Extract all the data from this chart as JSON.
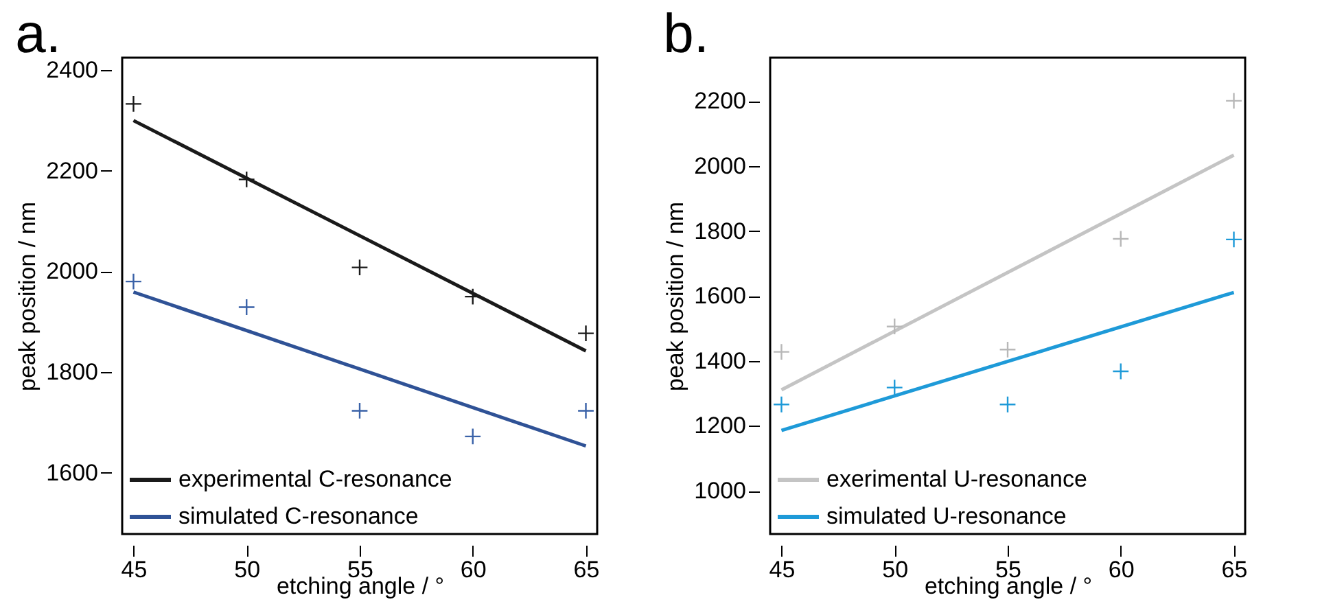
{
  "chart_data": [
    {
      "type": "line",
      "title": "a.",
      "xlabel": "etching angle / °",
      "ylabel": "peak position / nm",
      "xlim": [
        44.5,
        65.5
      ],
      "ylim": [
        1478,
        2425
      ],
      "xticks": [
        45,
        50,
        55,
        60,
        65
      ],
      "yticks": [
        1600,
        1800,
        2000,
        2200,
        2400
      ],
      "grid": false,
      "legend": "bottom left",
      "series": [
        {
          "name": "experimental C-resonance",
          "color": "#1a1a1a",
          "x": [
            45,
            65
          ],
          "values": [
            2300,
            1842
          ]
        },
        {
          "name": "simulated C-resonance",
          "color": "#2f5296",
          "x": [
            45,
            65
          ],
          "values": [
            1959,
            1653
          ]
        },
        {
          "color": "#1a1a1a",
          "type": "scatter",
          "marker": "cross",
          "x": [
            45,
            50,
            55,
            60,
            65
          ],
          "values": [
            2333,
            2183,
            2008,
            1950,
            1877
          ]
        },
        {
          "color": "#3a62a8",
          "type": "scatter",
          "marker": "cross",
          "x": [
            45,
            50,
            55,
            60,
            65
          ],
          "values": [
            1980,
            1929,
            1723,
            1672,
            1723
          ]
        }
      ]
    },
    {
      "type": "line",
      "title": "b.",
      "xlabel": "etching angle / °",
      "ylabel": "peak position / nm",
      "xlim": [
        44.5,
        65.5
      ],
      "ylim": [
        867,
        2334
      ],
      "xticks": [
        45,
        50,
        55,
        60,
        65
      ],
      "yticks": [
        1000,
        1200,
        1400,
        1600,
        1800,
        2000,
        2200
      ],
      "grid": false,
      "legend": "bottom left",
      "series": [
        {
          "name": "exerimental U-resonance",
          "color": "#c4c4c4",
          "x": [
            45,
            65
          ],
          "values": [
            1311,
            2034
          ]
        },
        {
          "name": "simulated U-resonance",
          "color": "#1e9ad8",
          "x": [
            45,
            65
          ],
          "values": [
            1186,
            1611
          ]
        },
        {
          "color": "#b8b8b8",
          "type": "scatter",
          "marker": "cross",
          "x": [
            45,
            50,
            55,
            60,
            65
          ],
          "values": [
            1428,
            1506,
            1435,
            1776,
            2201
          ]
        },
        {
          "color": "#1e9ad8",
          "type": "scatter",
          "marker": "cross",
          "x": [
            45,
            50,
            55,
            60,
            65
          ],
          "values": [
            1266,
            1318,
            1266,
            1368,
            1774
          ]
        }
      ]
    }
  ]
}
